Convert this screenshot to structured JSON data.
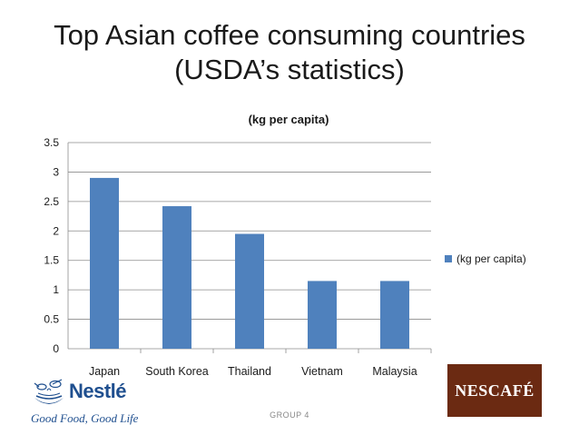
{
  "slide": {
    "title_line1": "Top Asian coffee consuming countries",
    "title_line2": "(USDA’s statistics)",
    "footer": "GROUP 4"
  },
  "logos": {
    "left_brand": "Nestlé",
    "left_tagline": "Good Food, Good Life",
    "right_brand": "NESCAFÉ"
  },
  "colors": {
    "bar": "#4f81bd",
    "grid": "#8c8c8c",
    "nescafe_bg": "#6b2a12",
    "nestle_blue": "#1f4f8f"
  },
  "chart_data": {
    "type": "bar",
    "title": "(kg per capita)",
    "categories": [
      "Japan",
      "South Korea",
      "Thailand",
      "Vietnam",
      "Malaysia"
    ],
    "series": [
      {
        "name": "(kg per capita)",
        "values": [
          2.9,
          2.42,
          1.95,
          1.15,
          1.15
        ]
      }
    ],
    "xlabel": "",
    "ylabel": "",
    "ylim": [
      0,
      3.5
    ],
    "yticks": [
      "0",
      "0.5",
      "1",
      "1.5",
      "2",
      "2.5",
      "3",
      "3.5"
    ],
    "grid": true,
    "legend_position": "right"
  }
}
